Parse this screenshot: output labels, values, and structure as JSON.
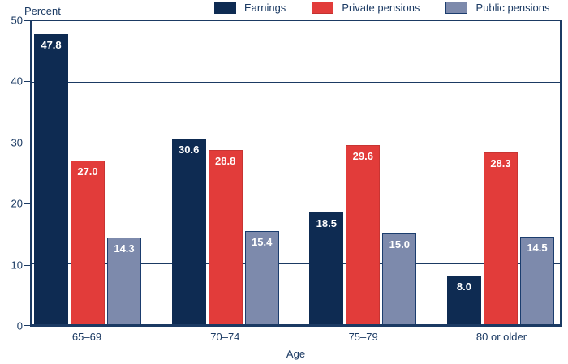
{
  "chart_data": {
    "type": "bar",
    "title": "",
    "categories": [
      "65–69",
      "70–74",
      "75–79",
      "80 or older"
    ],
    "series": [
      {
        "name": "Earnings",
        "color": "#0e2b52",
        "values": [
          47.8,
          30.6,
          18.5,
          8.0
        ],
        "labels": [
          "47.8",
          "30.6",
          "18.5",
          "8.0"
        ]
      },
      {
        "name": "Private pensions",
        "color": "#e23c3a",
        "values": [
          27.0,
          28.8,
          29.6,
          28.3
        ],
        "labels": [
          "27.0",
          "28.8",
          "29.6",
          "28.3"
        ]
      },
      {
        "name": "Public pensions",
        "color": "#7d8aac",
        "values": [
          14.3,
          15.4,
          15.0,
          14.5
        ],
        "labels": [
          "14.3",
          "15.4",
          "15.0",
          "14.5"
        ]
      }
    ],
    "xlabel": "Age",
    "ylabel": "Percent",
    "ylim": [
      0,
      50
    ],
    "yticks": [
      0,
      10,
      20,
      30,
      40,
      50
    ],
    "grid": true,
    "legend_position": "top",
    "axis_color": "#1b3a63"
  },
  "legend": [
    {
      "label": "Earnings",
      "color": "#0e2b52"
    },
    {
      "label": "Private pensions",
      "color": "#e23c3a"
    },
    {
      "label": "Public pensions",
      "color": "#7d8aac"
    }
  ]
}
